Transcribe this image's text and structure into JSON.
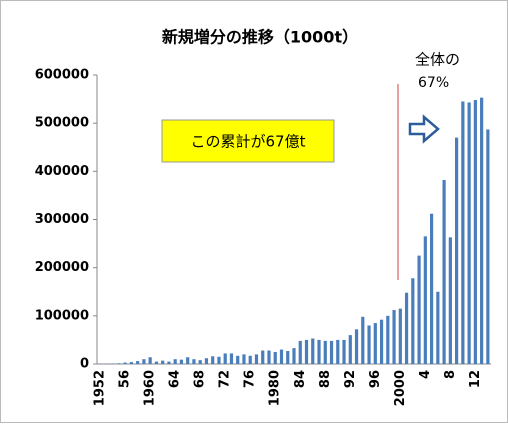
{
  "chart_data": {
    "type": "bar",
    "title": "新規増分の推移（1000t）",
    "categories": [
      "1952",
      null,
      null,
      null,
      "56",
      null,
      null,
      null,
      "1960",
      null,
      null,
      null,
      "64",
      null,
      null,
      null,
      "68",
      null,
      null,
      null,
      "72",
      null,
      null,
      null,
      "76",
      null,
      null,
      null,
      "1980",
      null,
      null,
      null,
      "84",
      null,
      null,
      null,
      "88",
      null,
      null,
      null,
      "92",
      null,
      null,
      null,
      "96",
      null,
      null,
      null,
      "2000",
      null,
      null,
      null,
      "4",
      null,
      null,
      null,
      "8",
      null,
      null,
      null,
      "12",
      null,
      null
    ],
    "values": [
      500,
      800,
      1000,
      1500,
      3000,
      4000,
      6000,
      10000,
      14000,
      5000,
      7000,
      5000,
      10000,
      9000,
      14000,
      10000,
      8000,
      12000,
      16000,
      15000,
      22000,
      22000,
      17000,
      20000,
      17000,
      20000,
      28000,
      28000,
      25000,
      30000,
      27000,
      33000,
      48000,
      50000,
      53000,
      50000,
      48000,
      48000,
      50000,
      50000,
      60000,
      72000,
      98000,
      80000,
      85000,
      92000,
      100000,
      112000,
      115000,
      148000,
      178000,
      225000,
      265000,
      312000,
      150000,
      382000,
      263000,
      470000,
      545000,
      543000,
      548000,
      553000,
      487000
    ],
    "color": "#4a7ebb",
    "ylim": [
      0,
      600000
    ],
    "yticks": [
      0,
      100000,
      200000,
      300000,
      400000,
      500000,
      600000
    ],
    "grid": false,
    "annotations": [
      "全体の",
      "67%",
      "この累計が67億t"
    ]
  }
}
